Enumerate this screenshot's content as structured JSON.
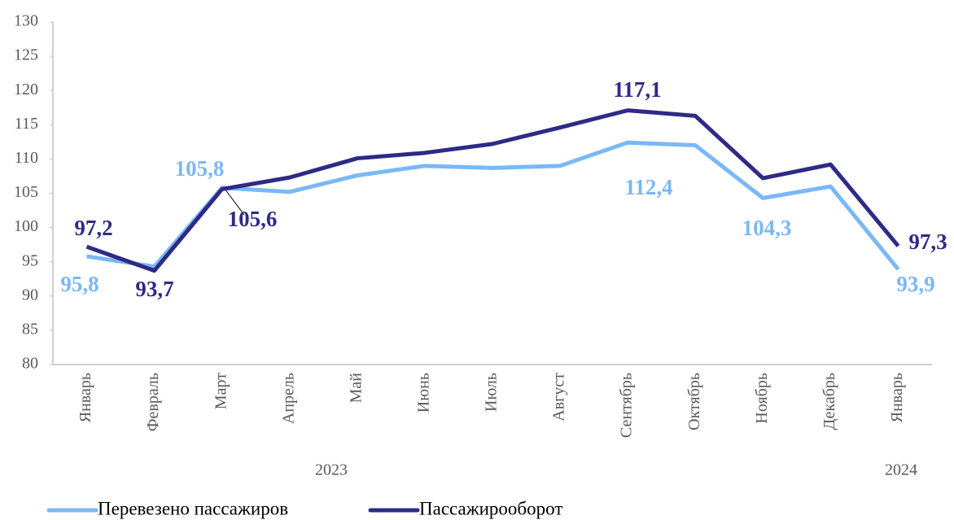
{
  "chart_data": {
    "type": "line",
    "categories": [
      "Январь",
      "Февраль",
      "Март",
      "Апрель",
      "Май",
      "Июнь",
      "Июль",
      "Август",
      "Сентябрь",
      "Октябрь",
      "Ноябрь",
      "Декабрь",
      "Январь"
    ],
    "groups": [
      "2023",
      "2024"
    ],
    "series": [
      {
        "name": "Перевезено пассажиров",
        "color": "#7ab8f5",
        "values": [
          95.8,
          94.3,
          105.8,
          105.2,
          107.6,
          109.0,
          108.7,
          109.0,
          112.4,
          112.0,
          104.3,
          106.0,
          93.9
        ],
        "value_labels": [
          "95,8",
          null,
          "105,8",
          null,
          null,
          null,
          null,
          null,
          "112,4",
          null,
          "104,3",
          null,
          "93,9"
        ]
      },
      {
        "name": "Пассажирооборот",
        "color": "#2e2a86",
        "values": [
          97.2,
          93.7,
          105.6,
          107.3,
          110.1,
          110.9,
          112.2,
          114.6,
          117.1,
          116.3,
          107.2,
          109.2,
          97.3
        ],
        "value_labels": [
          "97,2",
          "93,7",
          "105,6",
          null,
          null,
          null,
          null,
          null,
          "117,1",
          null,
          null,
          null,
          "97,3"
        ]
      }
    ],
    "ylim": [
      80,
      130
    ],
    "yticks": [
      80,
      85,
      90,
      95,
      100,
      105,
      110,
      115,
      120,
      125,
      130
    ],
    "legend": "bottom",
    "grid": false
  }
}
